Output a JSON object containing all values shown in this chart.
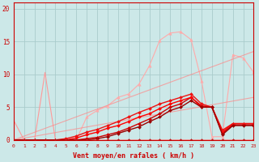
{
  "background_color": "#cce8e8",
  "grid_color": "#aacccc",
  "xlabel": "Vent moyen/en rafales ( km/h )",
  "xlim": [
    0,
    23
  ],
  "ylim": [
    0,
    21
  ],
  "yticks": [
    0,
    5,
    10,
    15,
    20
  ],
  "xticks": [
    0,
    1,
    2,
    3,
    4,
    5,
    6,
    7,
    8,
    9,
    10,
    11,
    12,
    13,
    14,
    15,
    16,
    17,
    18,
    19,
    20,
    21,
    22,
    23
  ],
  "lines": [
    {
      "x": [
        0,
        1,
        2,
        3,
        4,
        5,
        6,
        7,
        8,
        9,
        10,
        11,
        12,
        13,
        14,
        15,
        16,
        17,
        18,
        19,
        20,
        21,
        22,
        23
      ],
      "y": [
        3,
        0,
        0,
        10.3,
        0,
        0,
        0,
        0,
        0,
        0,
        0,
        0,
        0,
        0,
        0,
        0,
        0,
        0,
        0,
        0,
        0,
        0,
        0,
        0
      ],
      "color": "#ff9999",
      "marker": null,
      "linewidth": 0.8,
      "alpha": 1.0
    },
    {
      "x": [
        0,
        1,
        2,
        3,
        4,
        5,
        6,
        7,
        8,
        9,
        10,
        11,
        12,
        13,
        14,
        15,
        16,
        17,
        18,
        19,
        20,
        21,
        22,
        23
      ],
      "y": [
        0,
        0,
        0,
        0,
        0,
        0,
        0,
        3.5,
        4.5,
        5.2,
        6.5,
        7.0,
        8.5,
        11.3,
        15.2,
        16.3,
        16.5,
        15.3,
        9.0,
        0.5,
        0.5,
        13.0,
        12.5,
        10.3
      ],
      "color": "#ffaaaa",
      "marker": "^",
      "linewidth": 0.8,
      "alpha": 1.0,
      "markersize": 2.5
    },
    {
      "x": [
        0,
        23
      ],
      "y": [
        0,
        13.5
      ],
      "color": "#ff8888",
      "marker": null,
      "linewidth": 0.8,
      "alpha": 0.7
    },
    {
      "x": [
        0,
        23
      ],
      "y": [
        0,
        6.5
      ],
      "color": "#ff8888",
      "marker": null,
      "linewidth": 0.8,
      "alpha": 0.7
    },
    {
      "x": [
        0,
        1,
        2,
        3,
        4,
        5,
        6,
        7,
        8,
        9,
        10,
        11,
        12,
        13,
        14,
        15,
        16,
        17,
        18,
        19,
        20,
        21,
        22,
        23
      ],
      "y": [
        0,
        0,
        0,
        0,
        0,
        0,
        0,
        0.2,
        0.4,
        0.8,
        1.2,
        1.8,
        2.5,
        3.2,
        4.0,
        5.0,
        5.5,
        6.5,
        5.2,
        5.0,
        1.0,
        2.3,
        2.3,
        2.3
      ],
      "color": "#cc0000",
      "marker": "D",
      "linewidth": 1.0,
      "alpha": 1.0,
      "markersize": 2.0
    },
    {
      "x": [
        0,
        1,
        2,
        3,
        4,
        5,
        6,
        7,
        8,
        9,
        10,
        11,
        12,
        13,
        14,
        15,
        16,
        17,
        18,
        19,
        20,
        21,
        22,
        23
      ],
      "y": [
        0,
        0,
        0,
        0,
        0,
        0,
        0.3,
        0.8,
        1.2,
        1.8,
        2.2,
        2.8,
        3.5,
        4.0,
        4.8,
        5.5,
        6.0,
        6.5,
        5.0,
        5.0,
        1.2,
        2.5,
        2.5,
        2.5
      ],
      "color": "#ff0000",
      "marker": "D",
      "linewidth": 1.0,
      "alpha": 1.0,
      "markersize": 2.0
    },
    {
      "x": [
        0,
        1,
        2,
        3,
        4,
        5,
        6,
        7,
        8,
        9,
        10,
        11,
        12,
        13,
        14,
        15,
        16,
        17,
        18,
        19,
        20,
        21,
        22,
        23
      ],
      "y": [
        0,
        0,
        0,
        0,
        0,
        0.2,
        0.6,
        1.2,
        1.6,
        2.2,
        2.8,
        3.5,
        4.2,
        4.8,
        5.5,
        6.0,
        6.5,
        7.0,
        5.5,
        5.0,
        1.5,
        2.5,
        2.5,
        2.5
      ],
      "color": "#ee1111",
      "marker": "D",
      "linewidth": 1.0,
      "alpha": 1.0,
      "markersize": 2.0
    },
    {
      "x": [
        0,
        1,
        2,
        3,
        4,
        5,
        6,
        7,
        8,
        9,
        10,
        11,
        12,
        13,
        14,
        15,
        16,
        17,
        18,
        19,
        20,
        21,
        22,
        23
      ],
      "y": [
        0,
        0,
        0,
        0,
        0,
        0,
        0,
        0,
        0.2,
        0.5,
        1.0,
        1.5,
        2.0,
        2.8,
        3.5,
        4.5,
        5.0,
        6.0,
        5.0,
        5.0,
        0.8,
        2.2,
        2.2,
        2.2
      ],
      "color": "#990000",
      "marker": "D",
      "linewidth": 1.0,
      "alpha": 1.0,
      "markersize": 2.0
    },
    {
      "x": [
        0,
        1,
        2,
        3,
        4,
        5,
        6,
        7,
        8,
        9,
        10,
        11,
        12,
        13,
        14,
        15,
        16,
        17,
        18,
        19,
        20,
        21,
        22,
        23
      ],
      "y": [
        0,
        0,
        0,
        0,
        0,
        0,
        0,
        0,
        0,
        0,
        0,
        0,
        0,
        0,
        0,
        0,
        0,
        0,
        0,
        0,
        0,
        0,
        0,
        0
      ],
      "color": "#bb2222",
      "marker": "D",
      "linewidth": 0.8,
      "alpha": 1.0,
      "markersize": 2.0
    }
  ]
}
